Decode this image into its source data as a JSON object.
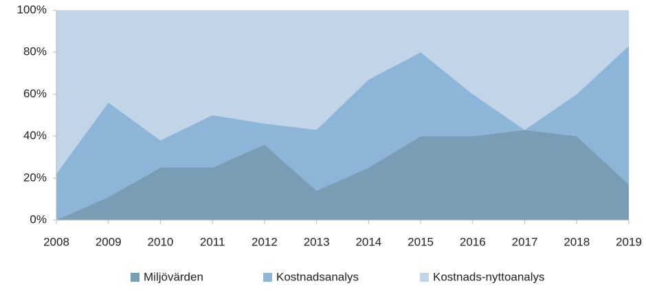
{
  "chart_data": {
    "type": "stacked-area",
    "x": [
      2008,
      2009,
      2010,
      2011,
      2012,
      2013,
      2014,
      2015,
      2016,
      2017,
      2018,
      2019
    ],
    "xlim": [
      2008,
      2019
    ],
    "xticks": [
      2008,
      2009,
      2010,
      2011,
      2012,
      2013,
      2014,
      2015,
      2016,
      2017,
      2018,
      2019
    ],
    "ylim": [
      0,
      100
    ],
    "yticks": [
      {
        "value": 0,
        "label": "0%"
      },
      {
        "value": 20,
        "label": "20%"
      },
      {
        "value": 40,
        "label": "40%"
      },
      {
        "value": 60,
        "label": "60%"
      },
      {
        "value": 80,
        "label": "80%"
      },
      {
        "value": 100,
        "label": "100%"
      }
    ],
    "legend": "bottom",
    "series": [
      {
        "name": "Miljövärden",
        "color": "#7a9db6",
        "values": [
          0,
          11,
          25,
          25,
          36,
          14,
          25,
          40,
          40,
          43,
          40,
          17
        ]
      },
      {
        "name": "Kostnadsanalys",
        "color": "#8cb5d8",
        "values": [
          22,
          45,
          13,
          25,
          10,
          29,
          42,
          40,
          20,
          0,
          20,
          66
        ]
      },
      {
        "name": "Kostnads-nyttoanalys",
        "color": "#c1d4e8",
        "values": [
          78,
          44,
          62,
          50,
          54,
          57,
          33,
          20,
          40,
          57,
          40,
          17
        ]
      }
    ]
  }
}
